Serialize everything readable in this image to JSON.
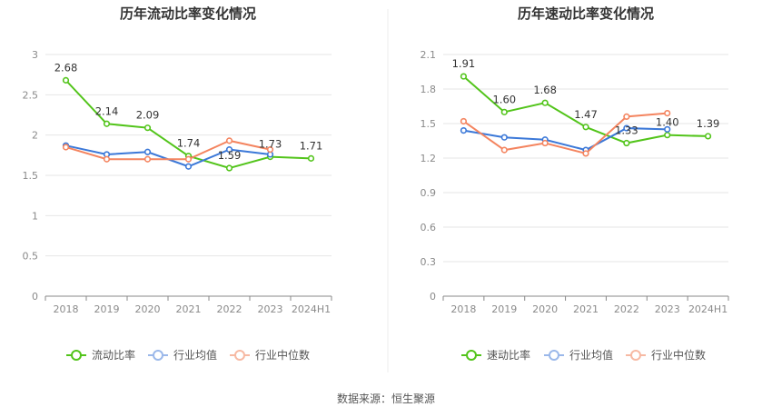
{
  "source": "数据来源：恒生聚源",
  "chart_data": [
    {
      "type": "line",
      "title": "历年流动比率变化情况",
      "categories": [
        "2018",
        "2019",
        "2020",
        "2021",
        "2022",
        "2023",
        "2024H1"
      ],
      "ylim": [
        0,
        3
      ],
      "yticks": [
        "0",
        "0.5",
        "1",
        "1.5",
        "2",
        "2.5",
        "3"
      ],
      "ytick_values": [
        0,
        0.5,
        1,
        1.5,
        2,
        2.5,
        3
      ],
      "series": [
        {
          "name": "流动比率",
          "color": "#52c41a",
          "values": [
            2.68,
            2.14,
            2.09,
            1.74,
            1.59,
            1.73,
            1.71
          ],
          "labels": [
            "2.68",
            "2.14",
            "2.09",
            "1.74",
            "1.59",
            "1.73",
            "1.71"
          ]
        },
        {
          "name": "行业均值",
          "color": "#3b78d8",
          "values": [
            1.87,
            1.76,
            1.79,
            1.61,
            1.82,
            1.76,
            null
          ]
        },
        {
          "name": "行业中位数",
          "color": "#f4845f",
          "values": [
            1.85,
            1.7,
            1.7,
            1.7,
            1.93,
            1.82,
            null
          ]
        }
      ]
    },
    {
      "type": "line",
      "title": "历年速动比率变化情况",
      "categories": [
        "2018",
        "2019",
        "2020",
        "2021",
        "2022",
        "2023",
        "2024H1"
      ],
      "ylim": [
        0,
        2.1
      ],
      "yticks": [
        "0",
        "0.3",
        "0.6",
        "0.9",
        "1.2",
        "1.5",
        "1.8",
        "2.1"
      ],
      "ytick_values": [
        0,
        0.3,
        0.6,
        0.9,
        1.2,
        1.5,
        1.8,
        2.1
      ],
      "series": [
        {
          "name": "速动比率",
          "color": "#52c41a",
          "values": [
            1.91,
            1.6,
            1.68,
            1.47,
            1.33,
            1.4,
            1.39
          ],
          "labels": [
            "1.91",
            "1.60",
            "1.68",
            "1.47",
            "1.33",
            "1.40",
            "1.39"
          ]
        },
        {
          "name": "行业均值",
          "color": "#3b78d8",
          "values": [
            1.44,
            1.38,
            1.36,
            1.27,
            1.46,
            1.45,
            null
          ]
        },
        {
          "name": "行业中位数",
          "color": "#f4845f",
          "values": [
            1.52,
            1.27,
            1.33,
            1.24,
            1.56,
            1.59,
            null
          ]
        }
      ]
    }
  ]
}
